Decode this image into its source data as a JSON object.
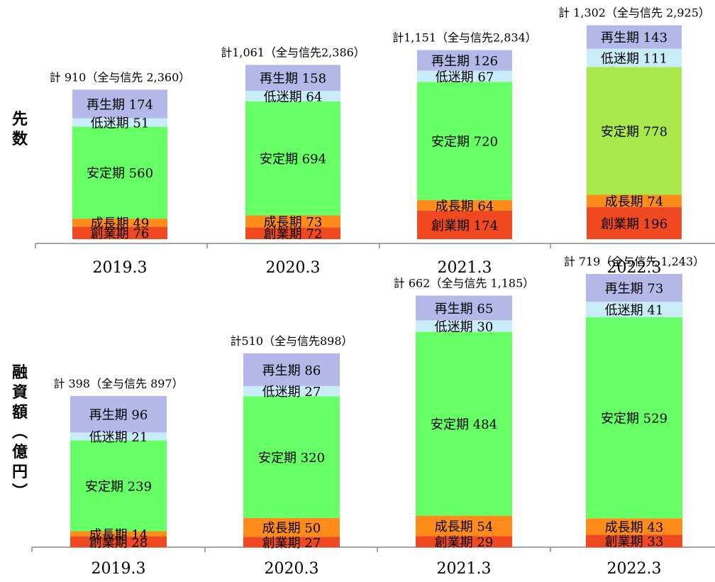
{
  "chart_data": [
    {
      "type": "bar",
      "ylabel": "先数",
      "categories": [
        "2019.3",
        "2020.3",
        "2021.3",
        "2022.3"
      ],
      "series": [
        {
          "name": "創業期",
          "values": [
            76,
            72,
            174,
            196
          ],
          "color": "#f04820"
        },
        {
          "name": "成長期",
          "values": [
            49,
            73,
            64,
            74
          ],
          "color": "#ff8c1a"
        },
        {
          "name": "安定期",
          "values": [
            560,
            694,
            720,
            778
          ],
          "colors": [
            "#66ff66",
            "#66ff66",
            "#66ff66",
            "#a8e84a"
          ]
        },
        {
          "name": "低迷期",
          "values": [
            51,
            64,
            67,
            111
          ],
          "color": "#c8ecf8"
        },
        {
          "name": "再生期",
          "values": [
            174,
            158,
            126,
            143
          ],
          "color": "#b4b8e8"
        }
      ],
      "totals": [
        "計 910（全与信先 2,360）",
        "計1,061（全与信先2,386）",
        "計1,151（全与信先2,834）",
        "計 1,302（全与信先 2,925）"
      ]
    },
    {
      "type": "bar",
      "ylabel": "融資額（億円）",
      "categories": [
        "2019.3",
        "2020.3",
        "2021.3",
        "2022.3"
      ],
      "series": [
        {
          "name": "創業期",
          "values": [
            28,
            27,
            29,
            33
          ],
          "color": "#f04820"
        },
        {
          "name": "成長期",
          "values": [
            14,
            50,
            54,
            43
          ],
          "color": "#ff8c1a"
        },
        {
          "name": "安定期",
          "values": [
            239,
            320,
            484,
            529
          ],
          "color": "#66ff66"
        },
        {
          "name": "低迷期",
          "values": [
            21,
            27,
            30,
            41
          ],
          "color": "#c8ecf8"
        },
        {
          "name": "再生期",
          "values": [
            96,
            86,
            65,
            73
          ],
          "color": "#b4b8e8"
        }
      ],
      "totals": [
        "計 398（全与信先 897）",
        "計510（全与信先898）",
        "計 662（全与信先 1,185）",
        "計 719（全与信先 1,243）"
      ]
    }
  ]
}
